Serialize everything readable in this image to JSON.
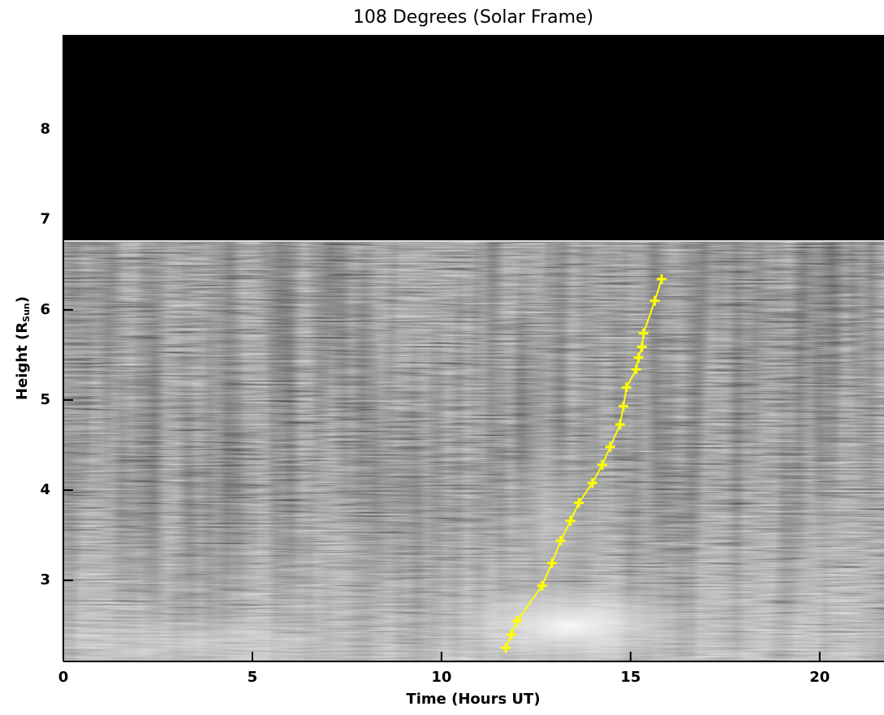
{
  "chart_data": {
    "type": "line",
    "title": "108 Degrees (Solar Frame)",
    "xlabel": "Time (Hours UT)",
    "ylabel": {
      "text": "Height (R",
      "sub": "Sun",
      "end": ")"
    },
    "x": [
      11.7,
      11.85,
      12.0,
      12.66,
      12.92,
      13.15,
      13.41,
      13.63,
      13.99,
      14.25,
      14.46,
      14.72,
      14.81,
      14.89,
      15.15,
      15.21,
      15.3,
      15.34,
      15.64,
      15.82
    ],
    "series": [
      {
        "color": "#ffff00",
        "marker": "plus",
        "values": [
          2.25,
          2.4,
          2.55,
          2.94,
          3.19,
          3.44,
          3.66,
          3.86,
          4.08,
          4.28,
          4.48,
          4.73,
          4.93,
          5.14,
          5.34,
          5.47,
          5.59,
          5.74,
          6.1,
          6.34
        ]
      }
    ],
    "xlim": [
      0,
      21.7
    ],
    "ylim": [
      2.1,
      9.05
    ],
    "xticks": [
      0,
      5,
      10,
      15,
      20
    ],
    "yticks": [
      3,
      4,
      5,
      6,
      7,
      8
    ]
  }
}
